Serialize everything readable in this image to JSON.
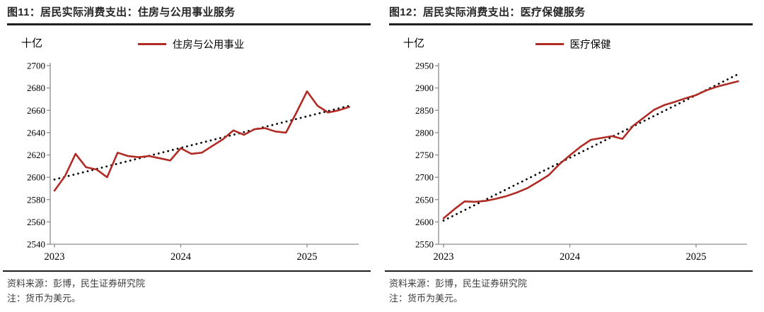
{
  "figures": [
    {
      "figure_label": "图11",
      "title": "图11：居民实际消费支出：住房与公用事业服务",
      "unit": "十亿",
      "legend": "住房与公用事业",
      "source": "资料来源：彭博，民生证券研究院",
      "note": "注：货币为美元。"
    },
    {
      "figure_label": "图12",
      "title": "图12：居民实际消费支出：医疗保健服务",
      "unit": "十亿",
      "legend": "医疗保健",
      "source": "资料来源：彭博，民生证券研究院",
      "note": "注：货币为美元。"
    }
  ],
  "colors": {
    "line_red": "#B02B24",
    "trend_black": "#000000",
    "axis_gray": "#8c8c8c",
    "rule_black": "#1f1f1f",
    "footer_text": "#3d3d3d"
  },
  "chart_data": [
    {
      "type": "line",
      "title": "居民实际消费支出：住房与公用事业服务",
      "unit": "十亿",
      "x": [
        "2023-01",
        "2023-02",
        "2023-03",
        "2023-04",
        "2023-05",
        "2023-06",
        "2023-07",
        "2023-08",
        "2023-09",
        "2023-10",
        "2023-11",
        "2023-12",
        "2024-01",
        "2024-02",
        "2024-03",
        "2024-04",
        "2024-05",
        "2024-06",
        "2024-07",
        "2024-08",
        "2024-09",
        "2024-10",
        "2024-11",
        "2024-12",
        "2025-01",
        "2025-02",
        "2025-03",
        "2025-04",
        "2025-05"
      ],
      "series": [
        {
          "name": "住房与公用事业",
          "style": "solid",
          "color": "#B02B24",
          "values": [
            2588,
            2601,
            2621,
            2609,
            2607,
            2600,
            2622,
            2619,
            2618,
            2619,
            2617,
            2615,
            2626,
            2621,
            2622,
            2628,
            2634,
            2642,
            2638,
            2643,
            2644,
            2641,
            2640,
            2658,
            2677,
            2664,
            2658,
            2660,
            2663
          ]
        },
        {
          "name": "线性趋势",
          "style": "dotted",
          "color": "#000000",
          "trend_endpoints": [
            2598,
            2664
          ]
        }
      ],
      "ylim": [
        2540,
        2700
      ],
      "ytick_step": 20,
      "yticks": [
        2540,
        2560,
        2580,
        2600,
        2620,
        2640,
        2660,
        2680,
        2700
      ],
      "xtick_labels": [
        "2023",
        "2024",
        "2025"
      ],
      "grid": false,
      "legend_position": "top"
    },
    {
      "type": "line",
      "title": "居民实际消费支出：医疗保健服务",
      "unit": "十亿",
      "x": [
        "2023-01",
        "2023-02",
        "2023-03",
        "2023-04",
        "2023-05",
        "2023-06",
        "2023-07",
        "2023-08",
        "2023-09",
        "2023-10",
        "2023-11",
        "2023-12",
        "2024-01",
        "2024-02",
        "2024-03",
        "2024-04",
        "2024-05",
        "2024-06",
        "2024-07",
        "2024-08",
        "2024-09",
        "2024-10",
        "2024-11",
        "2024-12",
        "2025-01",
        "2025-02",
        "2025-03",
        "2025-04",
        "2025-05"
      ],
      "series": [
        {
          "name": "医疗保健",
          "style": "solid",
          "color": "#B02B24",
          "values": [
            2608,
            2628,
            2646,
            2645,
            2647,
            2652,
            2658,
            2666,
            2676,
            2690,
            2705,
            2729,
            2749,
            2768,
            2784,
            2788,
            2792,
            2786,
            2815,
            2833,
            2851,
            2862,
            2869,
            2877,
            2884,
            2895,
            2903,
            2909,
            2915
          ]
        },
        {
          "name": "线性趋势",
          "style": "dotted",
          "color": "#000000",
          "trend_endpoints": [
            2603,
            2931
          ]
        }
      ],
      "ylim": [
        2550,
        2950
      ],
      "ytick_step": 50,
      "yticks": [
        2550,
        2600,
        2650,
        2700,
        2750,
        2800,
        2850,
        2900,
        2950
      ],
      "xtick_labels": [
        "2023",
        "2024",
        "2025"
      ],
      "grid": false,
      "legend_position": "top"
    }
  ]
}
